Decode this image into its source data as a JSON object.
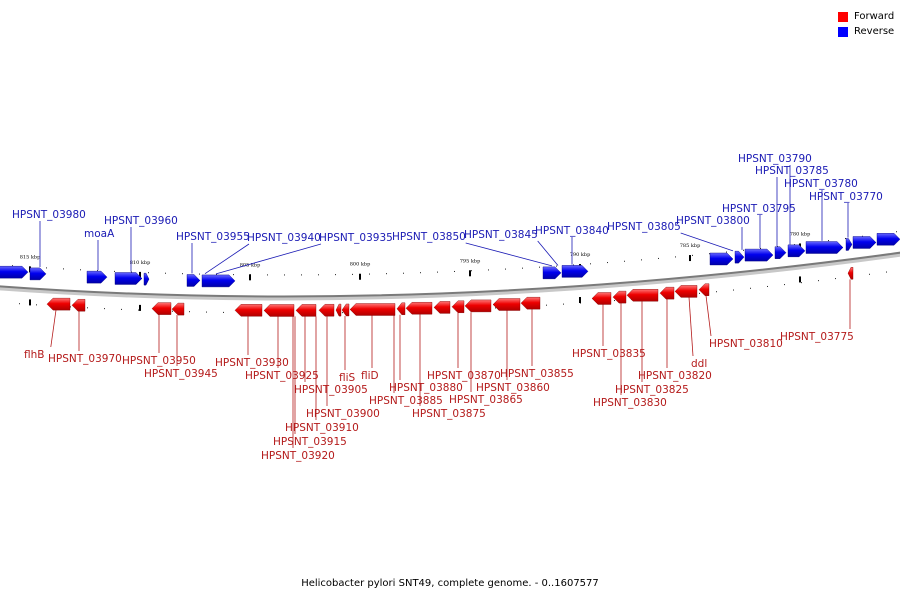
{
  "legend": {
    "forward_label": "Forward",
    "reverse_label": "Reverse",
    "forward_color": "#ff0000",
    "reverse_color": "#0000ff"
  },
  "caption": "Helicobacter pylori SNT49, complete genome. - 0..1607577",
  "scale_labels": [
    "815 kbp",
    "810 kbp",
    "805 kbp",
    "800 kbp",
    "795 kbp",
    "790 kbp",
    "785 kbp",
    "780 kbp"
  ],
  "reverse_gene_labels": [
    "HPSNT_03980",
    "moaA",
    "HPSNT_03960",
    "HPSNT_03955",
    "HPSNT_03940",
    "HPSNT_03935",
    "HPSNT_03850",
    "HPSNT_03845",
    "HPSNT_03840",
    "HPSNT_03805",
    "HPSNT_03800",
    "HPSNT_03795",
    "HPSNT_03790",
    "HPSNT_03785",
    "HPSNT_03780",
    "HPSNT_03770"
  ],
  "forward_gene_labels": [
    "flhB",
    "HPSNT_03970",
    "HPSNT_03950",
    "HPSNT_03945",
    "HPSNT_03930",
    "HPSNT_03925",
    "HPSNT_03905",
    "HPSNT_03900",
    "HPSNT_03910",
    "HPSNT_03915",
    "HPSNT_03920",
    "fliS",
    "fliD",
    "HPSNT_03880",
    "HPSNT_03885",
    "HPSNT_03875",
    "HPSNT_03870",
    "HPSNT_03865",
    "HPSNT_03860",
    "HPSNT_03855",
    "HPSNT_03835",
    "HPSNT_03830",
    "HPSNT_03825",
    "HPSNT_03820",
    "ddl",
    "HPSNT_03810",
    "HPSNT_03775"
  ]
}
